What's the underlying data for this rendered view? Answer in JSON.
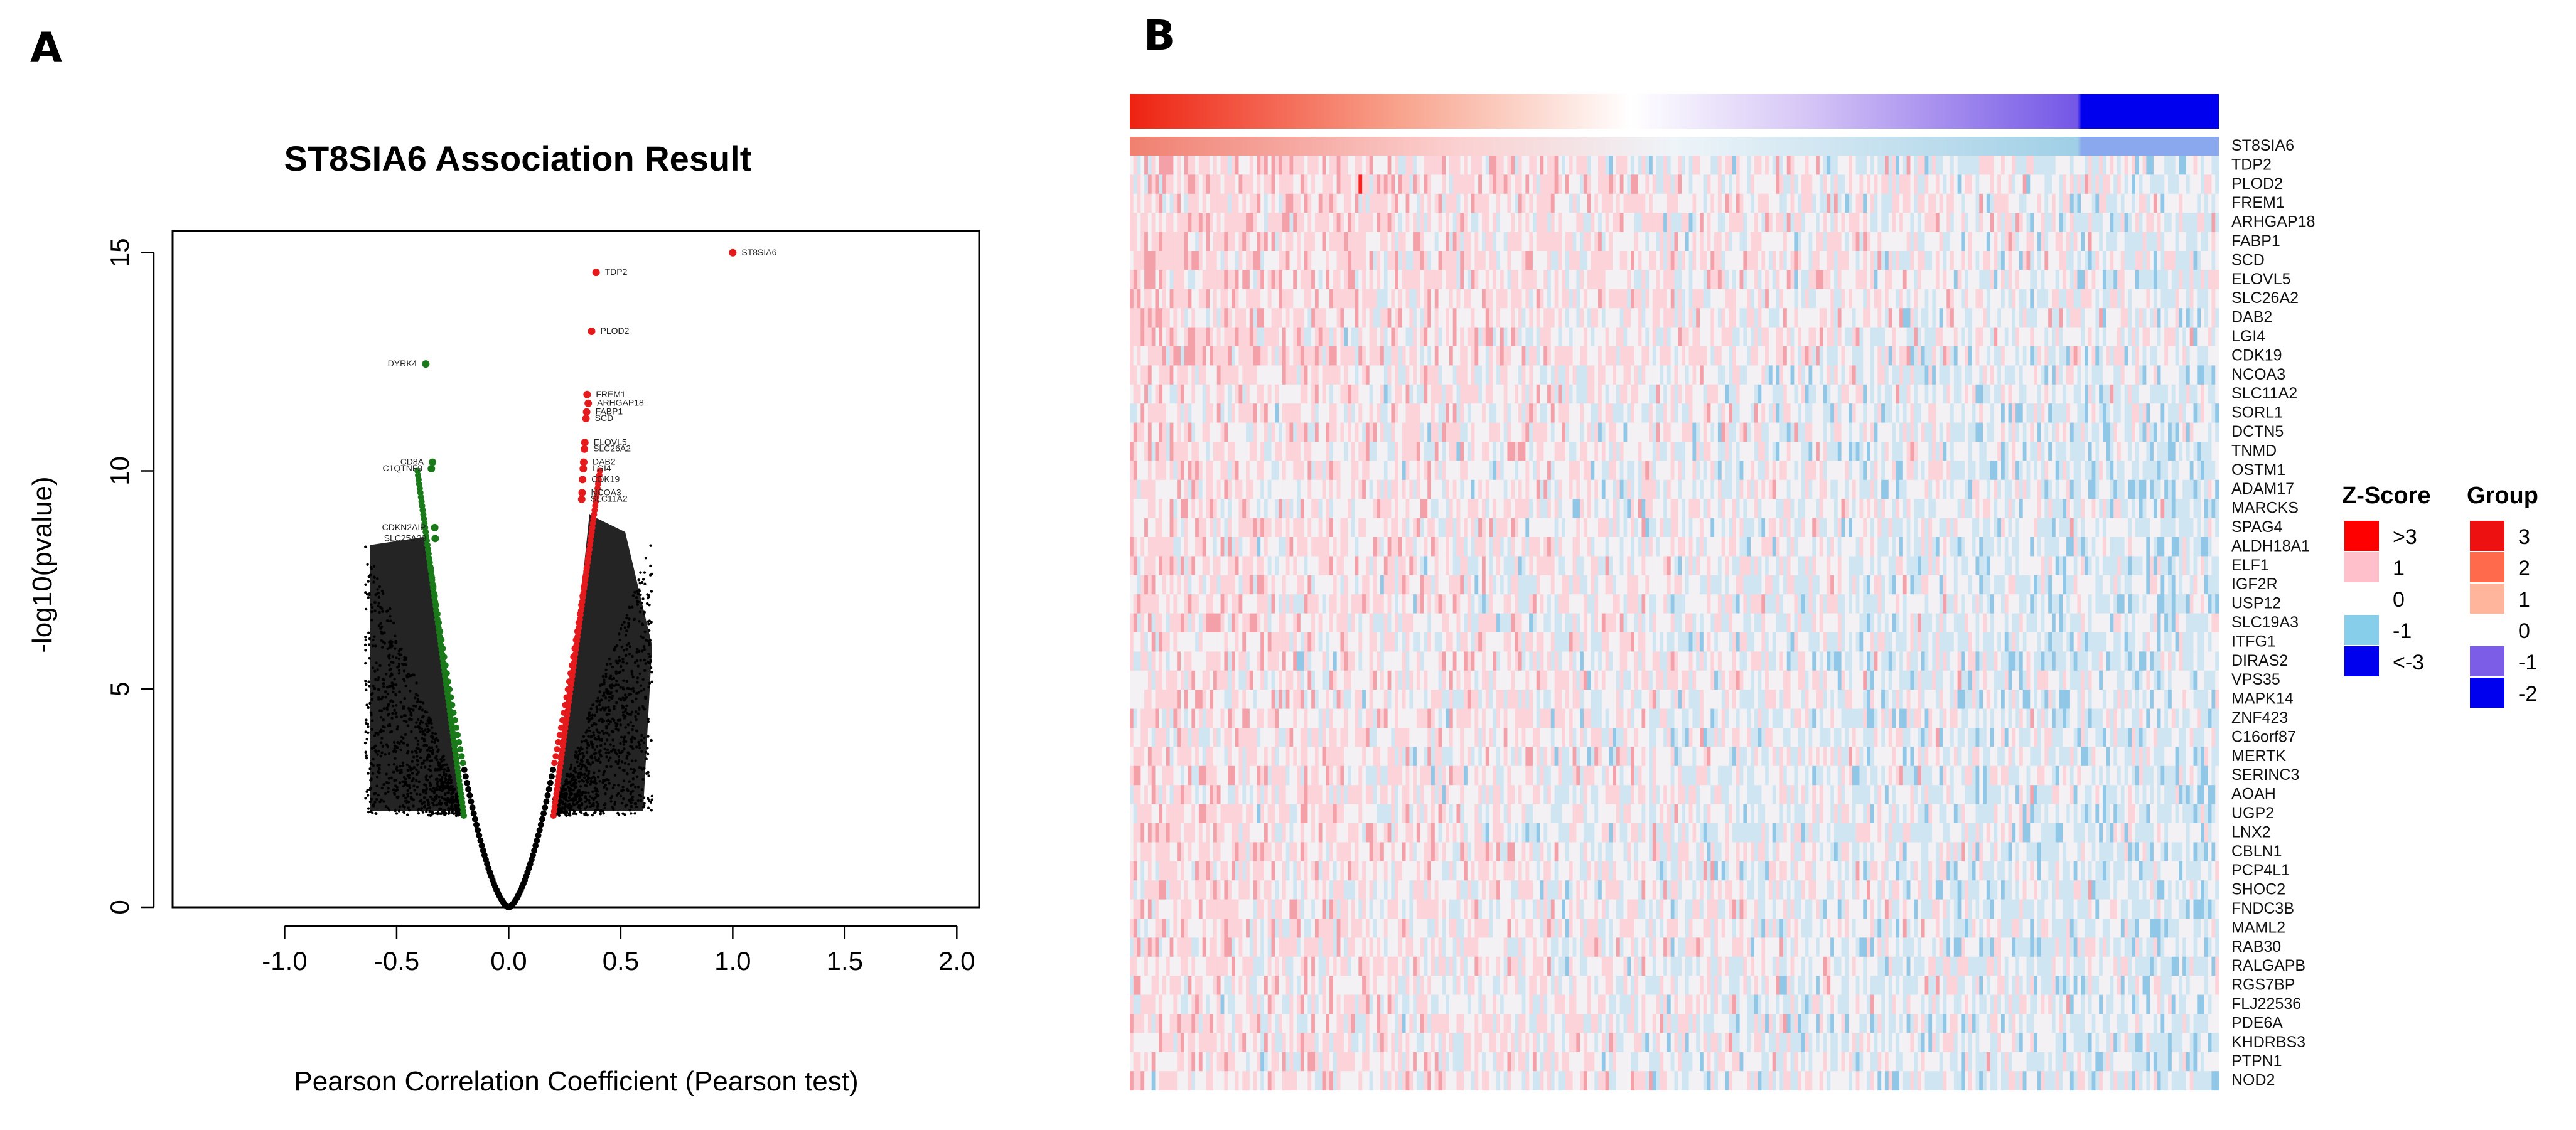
{
  "panels": {
    "a": "A",
    "b": "B"
  },
  "chart_data": [
    {
      "type": "scatter",
      "title": "ST8SIA6 Association Result",
      "xlabel": "Pearson Correlation Coefficient (Pearson test)",
      "ylabel": "-log10(pvalue)",
      "xlim": [
        -1.5,
        2.1
      ],
      "ylim": [
        0,
        15.5
      ],
      "x_ticks": [
        -1.0,
        -0.5,
        0.0,
        0.5,
        1.0,
        1.5,
        2.0
      ],
      "x_tick_labels": [
        "-1.0",
        "-0.5",
        "0.0",
        "0.5",
        "1.0",
        "1.5",
        "2.0"
      ],
      "y_ticks": [
        0,
        5,
        10,
        15
      ],
      "y_tick_labels": [
        "0",
        "5",
        "10",
        "15"
      ],
      "colors": {
        "positive": "#e41a1c",
        "negative": "#1a7a1a",
        "neutral": "#000000"
      },
      "labeled_points": [
        {
          "label": "ST8SIA6",
          "x": 1.0,
          "y": 15.0,
          "group": "positive"
        },
        {
          "label": "TDP2",
          "x": 0.39,
          "y": 14.55,
          "group": "positive"
        },
        {
          "label": "PLOD2",
          "x": 0.37,
          "y": 13.2,
          "group": "positive"
        },
        {
          "label": "FREM1",
          "x": 0.35,
          "y": 11.75,
          "group": "positive"
        },
        {
          "label": "ARHGAP18",
          "x": 0.355,
          "y": 11.55,
          "group": "positive"
        },
        {
          "label": "FABP1",
          "x": 0.348,
          "y": 11.35,
          "group": "positive"
        },
        {
          "label": "SCD",
          "x": 0.345,
          "y": 11.2,
          "group": "positive"
        },
        {
          "label": "ELOVL5",
          "x": 0.34,
          "y": 10.65,
          "group": "positive"
        },
        {
          "label": "SLC26A2",
          "x": 0.338,
          "y": 10.5,
          "group": "positive"
        },
        {
          "label": "DAB2",
          "x": 0.335,
          "y": 10.2,
          "group": "positive"
        },
        {
          "label": "LGI4",
          "x": 0.333,
          "y": 10.05,
          "group": "positive"
        },
        {
          "label": "CDK19",
          "x": 0.33,
          "y": 9.8,
          "group": "positive"
        },
        {
          "label": "NCOA3",
          "x": 0.328,
          "y": 9.5,
          "group": "positive"
        },
        {
          "label": "SLC11A2",
          "x": 0.326,
          "y": 9.35,
          "group": "positive"
        },
        {
          "label": "DYRK4",
          "x": -0.37,
          "y": 12.45,
          "group": "negative"
        },
        {
          "label": "CD8A",
          "x": -0.34,
          "y": 10.2,
          "group": "negative"
        },
        {
          "label": "C1QTNF9",
          "x": -0.345,
          "y": 10.05,
          "group": "negative"
        },
        {
          "label": "CDKN2AIP",
          "x": -0.33,
          "y": 8.7,
          "group": "negative"
        },
        {
          "label": "SLC25A29",
          "x": -0.328,
          "y": 8.45,
          "group": "negative"
        }
      ]
    },
    {
      "type": "heatmap",
      "row_labels": [
        "ST8SIA6",
        "TDP2",
        "PLOD2",
        "FREM1",
        "ARHGAP18",
        "FABP1",
        "SCD",
        "ELOVL5",
        "SLC26A2",
        "DAB2",
        "LGI4",
        "CDK19",
        "NCOA3",
        "SLC11A2",
        "SORL1",
        "DCTN5",
        "TNMD",
        "OSTM1",
        "ADAM17",
        "MARCKS",
        "SPAG4",
        "ALDH18A1",
        "ELF1",
        "IGF2R",
        "USP12",
        "SLC19A3",
        "ITFG1",
        "DIRAS2",
        "VPS35",
        "MAPK14",
        "ZNF423",
        "C16orf87",
        "MERTK",
        "SERINC3",
        "AOAH",
        "UGP2",
        "LNX2",
        "CBLN1",
        "PCP4L1",
        "SHOC2",
        "FNDC3B",
        "MAML2",
        "RAB30",
        "RALGAPB",
        "RGS7BP",
        "FLJ22536",
        "PDE6A",
        "KHDRBS3",
        "PTPN1",
        "NOD2"
      ],
      "zscore_legend": {
        "title": "Z-Score",
        "items": [
          {
            "label": ">3",
            "color": "#ff0000"
          },
          {
            "label": "1",
            "color": "#ffc0cb"
          },
          {
            "label": "0",
            "color": "#ffffff"
          },
          {
            "label": "-1",
            "color": "#87ceeb"
          },
          {
            "label": "<-3",
            "color": "#0000ee"
          }
        ]
      },
      "group_legend": {
        "title": "Group",
        "items": [
          {
            "label": "3",
            "color": "#ee1111"
          },
          {
            "label": "2",
            "color": "#ff6a4d"
          },
          {
            "label": "1",
            "color": "#ffb59c"
          },
          {
            "label": "0",
            "color": "#ffffff"
          },
          {
            "label": "-1",
            "color": "#7b5de8"
          },
          {
            "label": "-2",
            "color": "#0000ee"
          }
        ]
      }
    }
  ]
}
